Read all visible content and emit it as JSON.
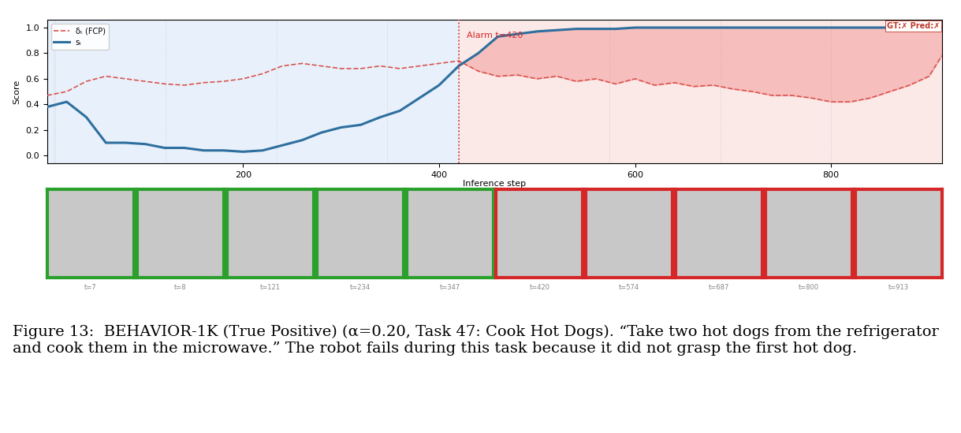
{
  "chart_data": {
    "type": "line",
    "xlabel": "Inference step",
    "ylabel": "Score",
    "xlim": [
      0,
      913
    ],
    "xticks": [
      200,
      400,
      600,
      800
    ],
    "ylim": [
      -0.06,
      1.06
    ],
    "yticks": [
      {
        "value": 0.0,
        "label": "0.0"
      },
      {
        "value": 0.2,
        "label": "0.2"
      },
      {
        "value": 0.4,
        "label": "0.4"
      },
      {
        "value": 0.6,
        "label": "0.6"
      },
      {
        "value": 0.8,
        "label": "0.8"
      },
      {
        "value": 1.0,
        "label": "1.0"
      }
    ],
    "legend": "upper left",
    "x": [
      0,
      20,
      40,
      60,
      80,
      100,
      120,
      140,
      160,
      180,
      200,
      220,
      240,
      260,
      280,
      300,
      320,
      340,
      360,
      380,
      400,
      420,
      440,
      460,
      480,
      500,
      520,
      540,
      560,
      580,
      600,
      620,
      640,
      660,
      680,
      700,
      720,
      740,
      760,
      780,
      800,
      820,
      840,
      860,
      880,
      900,
      913
    ],
    "series": [
      {
        "name": "δₜ (FCP)",
        "color": "#d9534f",
        "line_style": "dashed",
        "values": [
          0.47,
          0.5,
          0.58,
          0.62,
          0.6,
          0.58,
          0.56,
          0.55,
          0.57,
          0.58,
          0.6,
          0.64,
          0.7,
          0.72,
          0.7,
          0.68,
          0.68,
          0.7,
          0.68,
          0.7,
          0.72,
          0.74,
          0.66,
          0.62,
          0.63,
          0.6,
          0.62,
          0.58,
          0.6,
          0.56,
          0.6,
          0.55,
          0.57,
          0.54,
          0.55,
          0.52,
          0.5,
          0.47,
          0.47,
          0.45,
          0.42,
          0.42,
          0.45,
          0.5,
          0.55,
          0.62,
          0.78
        ]
      },
      {
        "name": "sₜ",
        "color": "#2e6f9e",
        "line_style": "solid",
        "values": [
          0.38,
          0.42,
          0.3,
          0.1,
          0.1,
          0.09,
          0.06,
          0.06,
          0.04,
          0.04,
          0.03,
          0.04,
          0.08,
          0.12,
          0.18,
          0.22,
          0.24,
          0.3,
          0.35,
          0.45,
          0.55,
          0.7,
          0.8,
          0.93,
          0.95,
          0.97,
          0.98,
          0.99,
          0.99,
          0.99,
          1.0,
          1.0,
          1.0,
          1.0,
          1.0,
          1.0,
          1.0,
          1.0,
          1.0,
          1.0,
          1.0,
          1.0,
          1.0,
          1.0,
          1.0,
          1.0,
          1.0
        ]
      }
    ],
    "alarm_step": 420,
    "alarm_label": "Alarm t=420",
    "status_label": "GT:✗ Pred:✗"
  },
  "thumbnails": [
    {
      "step": 7,
      "label": "t=7",
      "color": "#2ca02c"
    },
    {
      "step": 8,
      "label": "t=8",
      "color": "#2ca02c"
    },
    {
      "step": 121,
      "label": "t=121",
      "color": "#2ca02c"
    },
    {
      "step": 234,
      "label": "t=234",
      "color": "#2ca02c"
    },
    {
      "step": 347,
      "label": "t=347",
      "color": "#2ca02c"
    },
    {
      "step": 420,
      "label": "t=420",
      "color": "#d62728"
    },
    {
      "step": 574,
      "label": "t=574",
      "color": "#d62728"
    },
    {
      "step": 687,
      "label": "t=687",
      "color": "#d62728"
    },
    {
      "step": 800,
      "label": "t=800",
      "color": "#d62728"
    },
    {
      "step": 913,
      "label": "t=913",
      "color": "#d62728"
    }
  ],
  "caption": "Figure 13:  BEHAVIOR-1K (True Positive) (α=0.20, Task 47: Cook Hot Dogs). “Take two hot dogs from the refrigerator and cook them in the microwave.” The robot fails during this task because it did not grasp the first hot dog."
}
